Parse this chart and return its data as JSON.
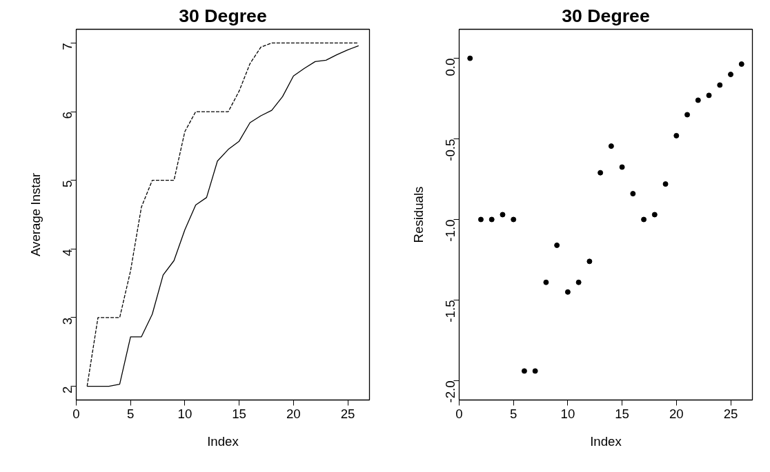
{
  "chart_data": [
    {
      "type": "line",
      "title": "30 Degree",
      "xlabel": "Index",
      "ylabel": "Average Instar",
      "x": [
        1,
        2,
        3,
        4,
        5,
        6,
        7,
        8,
        9,
        10,
        11,
        12,
        13,
        14,
        15,
        16,
        17,
        18,
        19,
        20,
        21,
        22,
        23,
        24,
        25,
        26
      ],
      "series": [
        {
          "color": "#000000",
          "line_style": "solid",
          "values": [
            2.0,
            2.0,
            2.0,
            2.03,
            2.72,
            2.72,
            3.05,
            3.62,
            3.83,
            4.28,
            4.64,
            4.75,
            5.28,
            5.45,
            5.57,
            5.84,
            5.94,
            6.02,
            6.22,
            6.52,
            6.63,
            6.73,
            6.75,
            6.83,
            6.9,
            6.96
          ]
        },
        {
          "color": "#000000",
          "line_style": "dashed",
          "values": [
            2.0,
            3.0,
            3.0,
            3.0,
            3.68,
            4.61,
            5.0,
            5.0,
            5.0,
            5.71,
            6.0,
            6.0,
            6.0,
            6.0,
            6.3,
            6.7,
            6.94,
            7.0,
            7.0,
            7.0,
            7.0,
            7.0,
            7.0,
            7.0,
            7.0,
            7.0
          ]
        }
      ],
      "xlim": [
        0,
        27
      ],
      "ylim": [
        1.8,
        7.2
      ],
      "xticks": [
        0,
        5,
        10,
        15,
        20,
        25
      ],
      "yticks": [
        2,
        3,
        4,
        5,
        6,
        7
      ],
      "grid": false,
      "marker": "none"
    },
    {
      "type": "scatter",
      "title": "30 Degree",
      "xlabel": "Index",
      "ylabel": "Residuals",
      "x": [
        1,
        2,
        3,
        4,
        5,
        6,
        7,
        8,
        9,
        10,
        11,
        12,
        13,
        14,
        15,
        16,
        17,
        18,
        19,
        20,
        21,
        22,
        23,
        24,
        25,
        26
      ],
      "series": [
        {
          "color": "#000000",
          "values": [
            0.0,
            -1.0,
            -1.0,
            -0.97,
            -1.0,
            -1.94,
            -1.94,
            -1.39,
            -1.16,
            -1.45,
            -1.39,
            -1.26,
            -0.71,
            -0.545,
            -0.675,
            -0.84,
            -1.0,
            -0.97,
            -0.78,
            -0.48,
            -0.35,
            -0.26,
            -0.23,
            -0.166,
            -0.1,
            -0.036
          ]
        }
      ],
      "xlim": [
        0,
        27
      ],
      "ylim": [
        -2.12,
        0.18
      ],
      "xticks": [
        0,
        5,
        10,
        15,
        20,
        25
      ],
      "yticks": [
        {
          "value": -2.0,
          "label": "-2.0"
        },
        {
          "value": -1.5,
          "label": "-1.5"
        },
        {
          "value": -1.0,
          "label": "-1.0"
        },
        {
          "value": -0.5,
          "label": "-0.5"
        },
        {
          "value": 0.0,
          "label": "0.0"
        }
      ],
      "grid": false,
      "marker": "circle"
    }
  ]
}
